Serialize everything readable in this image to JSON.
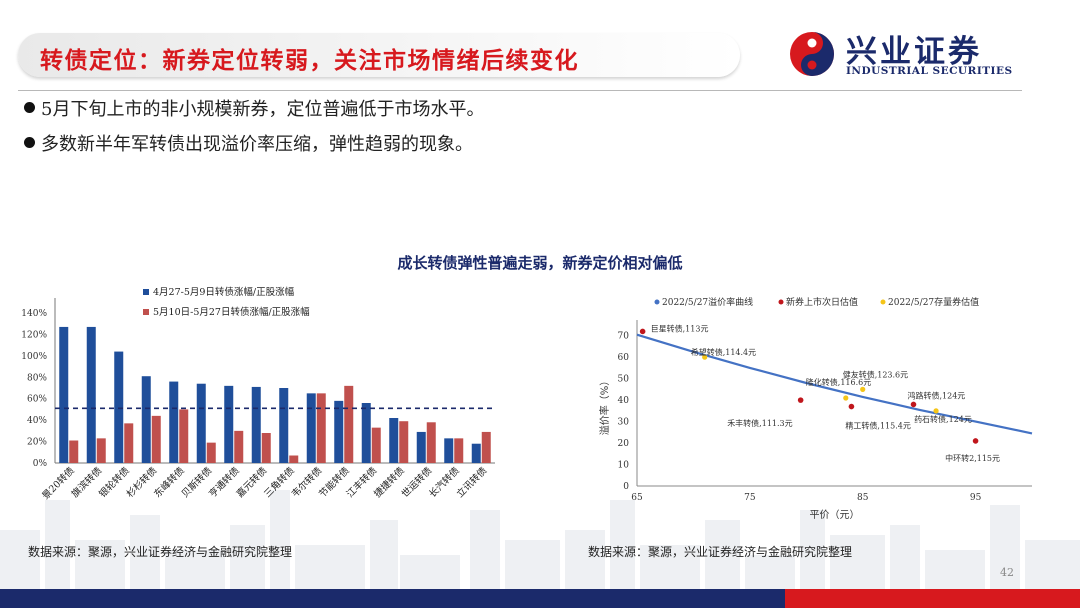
{
  "header": {
    "title": "转债定位：新券定位转弱，关注市场情绪后续变化",
    "logo_cn": "兴业证券",
    "logo_en": "INDUSTRIAL SECURITIES"
  },
  "bullets": [
    "5月下旬上市的非小规模新券，定位普遍低于市场水平。",
    "多数新半年军转债出现溢价率压缩，弹性趋弱的现象。"
  ],
  "chart_title": "成长转债弹性普遍走弱，新券定价相对偏低",
  "colors": {
    "brand_red": "#d7191e",
    "brand_blue": "#1b2a6b",
    "bar_blue": "#1f4e9a",
    "bar_red": "#c0504d",
    "curve_blue": "#4472c4",
    "dot_red": "#c0161c",
    "dot_yellow": "#f5c518"
  },
  "chart_data": [
    {
      "type": "bar",
      "categories": [
        "景20转债",
        "旗滨转债",
        "银轮转债",
        "杉杉转债",
        "东峰转债",
        "贝斯转债",
        "亨通转债",
        "嘉元转债",
        "三角转债",
        "韦尔转债",
        "节能转债",
        "江丰转债",
        "捷捷转债",
        "世运转债",
        "长汽转债",
        "立讯转债"
      ],
      "series": [
        {
          "name": "4月27-5月9日转债涨幅/正股涨幅",
          "values": [
            127,
            127,
            104,
            81,
            76,
            74,
            72,
            71,
            70,
            65,
            58,
            56,
            42,
            29,
            23,
            18
          ]
        },
        {
          "name": "5月10日-5月27日转债涨幅/正股涨幅",
          "values": [
            21,
            23,
            37,
            44,
            50,
            19,
            30,
            28,
            7,
            65,
            72,
            33,
            39,
            38,
            23,
            29
          ]
        }
      ],
      "reference_line": 51,
      "ylim": [
        0,
        140
      ],
      "yticks": [
        "0%",
        "20%",
        "40%",
        "60%",
        "80%",
        "100%",
        "120%",
        "140%"
      ],
      "grid": false,
      "legend": "top"
    },
    {
      "type": "scatter",
      "legend": [
        "2022/5/27溢价率曲线",
        "新券上市次日估值",
        "2022/5/27存量券估值"
      ],
      "xlabel": "平价（元）",
      "ylabel": "溢价率（%）",
      "xlim": [
        65,
        100
      ],
      "ylim": [
        0,
        75
      ],
      "xticks": [
        "65",
        "75",
        "85",
        "95"
      ],
      "yticks": [
        "0",
        "10",
        "20",
        "30",
        "40",
        "50",
        "60",
        "70"
      ],
      "curve": [
        [
          65,
          70.5
        ],
        [
          70,
          62.5
        ],
        [
          75,
          55
        ],
        [
          80,
          48
        ],
        [
          85,
          41.5
        ],
        [
          90,
          35.5
        ],
        [
          95,
          30
        ],
        [
          100,
          24.5
        ]
      ],
      "new_issues": [
        {
          "label": "巨星转债,113元",
          "x": 65.5,
          "y": 72
        },
        {
          "label": "禾丰转债,111.3元",
          "x": 79.5,
          "y": 40
        },
        {
          "label": "精工转债,115.4元",
          "x": 84,
          "y": 37
        },
        {
          "label": "鸿路转债,124元",
          "x": 89.5,
          "y": 38
        },
        {
          "label": "中环转2,115元",
          "x": 95,
          "y": 21
        }
      ],
      "existing": [
        {
          "label": "希望转债,114.4元",
          "x": 71,
          "y": 60
        },
        {
          "label": "健友转债,123.6元",
          "x": 85,
          "y": 45
        },
        {
          "label": "隆化转债,116.6元",
          "x": 83.5,
          "y": 41
        },
        {
          "label": "药石转债,124元",
          "x": 91.5,
          "y": 35
        }
      ]
    }
  ],
  "sources": [
    "数据来源：聚源，兴业证券经济与金融研究院整理",
    "数据来源：聚源，兴业证券经济与金融研究院整理"
  ],
  "page_number": "42"
}
